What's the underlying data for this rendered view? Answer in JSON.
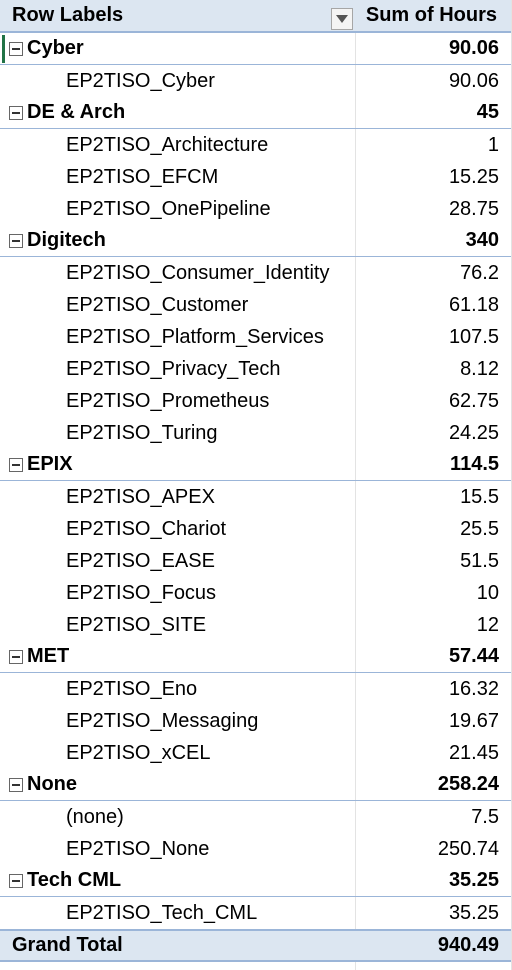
{
  "header": {
    "row_labels": "Row Labels",
    "value_label": "Sum of Hours"
  },
  "groups": [
    {
      "name": "Cyber",
      "total": "90.06",
      "items": [
        {
          "label": "EP2TISO_Cyber",
          "value": "90.06"
        }
      ]
    },
    {
      "name": "DE & Arch",
      "total": "45",
      "items": [
        {
          "label": "EP2TISO_Architecture",
          "value": "1"
        },
        {
          "label": "EP2TISO_EFCM",
          "value": "15.25"
        },
        {
          "label": "EP2TISO_OnePipeline",
          "value": "28.75"
        }
      ]
    },
    {
      "name": "Digitech",
      "total": "340",
      "items": [
        {
          "label": "EP2TISO_Consumer_Identity",
          "value": "76.2"
        },
        {
          "label": "EP2TISO_Customer",
          "value": "61.18"
        },
        {
          "label": "EP2TISO_Platform_Services",
          "value": "107.5"
        },
        {
          "label": "EP2TISO_Privacy_Tech",
          "value": "8.12"
        },
        {
          "label": "EP2TISO_Prometheus",
          "value": "62.75"
        },
        {
          "label": "EP2TISO_Turing",
          "value": "24.25"
        }
      ]
    },
    {
      "name": "EPIX",
      "total": "114.5",
      "items": [
        {
          "label": "EP2TISO_APEX",
          "value": "15.5"
        },
        {
          "label": "EP2TISO_Chariot",
          "value": "25.5"
        },
        {
          "label": "EP2TISO_EASE",
          "value": "51.5"
        },
        {
          "label": "EP2TISO_Focus",
          "value": "10"
        },
        {
          "label": "EP2TISO_SITE",
          "value": "12"
        }
      ]
    },
    {
      "name": "MET",
      "total": "57.44",
      "items": [
        {
          "label": "EP2TISO_Eno",
          "value": "16.32"
        },
        {
          "label": "EP2TISO_Messaging",
          "value": "19.67"
        },
        {
          "label": "EP2TISO_xCEL",
          "value": "21.45"
        }
      ]
    },
    {
      "name": "None",
      "total": "258.24",
      "items": [
        {
          "label": "(none)",
          "value": "7.5"
        },
        {
          "label": "EP2TISO_None",
          "value": "250.74"
        }
      ]
    },
    {
      "name": "Tech CML",
      "total": "35.25",
      "items": [
        {
          "label": "EP2TISO_Tech_CML",
          "value": "35.25"
        }
      ]
    }
  ],
  "grand_total": {
    "label": "Grand Total",
    "value": "940.49"
  },
  "icons": {
    "filter": "filter-dropdown-icon",
    "collapse": "collapse-minus-icon"
  },
  "colors": {
    "header_bg": "#dce6f1",
    "border": "#9bb5d8",
    "active_cell": "#217346"
  }
}
